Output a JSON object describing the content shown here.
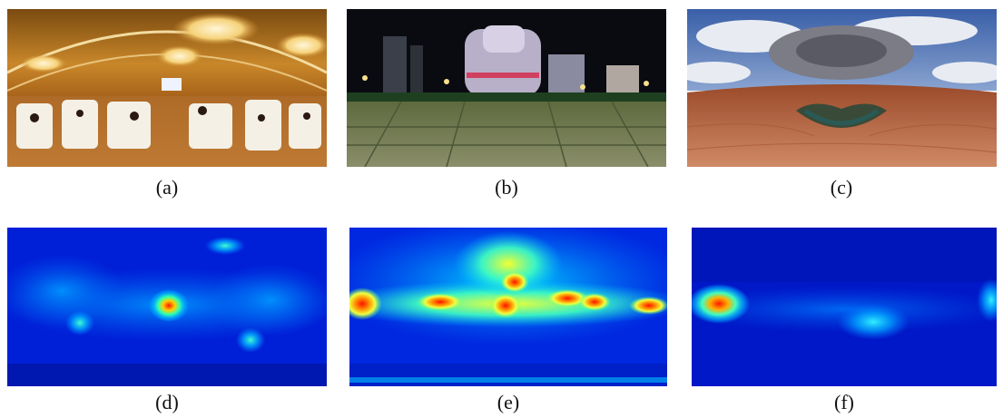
{
  "captions": {
    "a": "(a)",
    "b": "(b)",
    "c": "(c)",
    "d": "(d)",
    "e": "(e)",
    "f": "(f)"
  },
  "panels": {
    "a": "panorama-conference-hall",
    "b": "panorama-city-night-plaza",
    "c": "panorama-canyon-river-bend",
    "d": "saliency-heatmap-a",
    "e": "saliency-heatmap-b",
    "f": "saliency-heatmap-c"
  },
  "colors": {
    "heat_low": "#0020d8",
    "heat_mid": "#00c8ff",
    "heat_high": "#ff2000"
  }
}
